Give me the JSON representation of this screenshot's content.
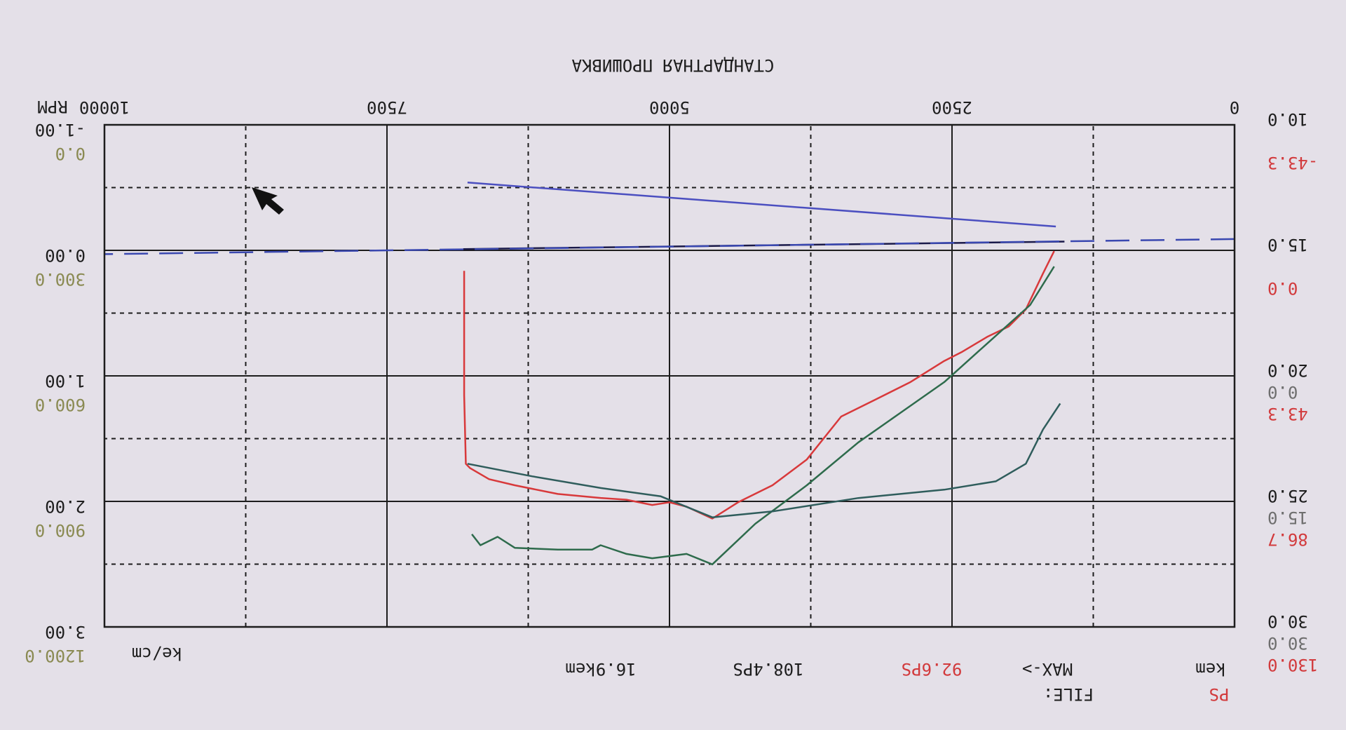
{
  "chart_data": {
    "type": "line",
    "title": "СТАНДАРТНАЯ ПРОШИВКА",
    "x_label": "RPM",
    "right_unit": "ke/cm",
    "xlim": [
      0,
      10000
    ],
    "xticks": [
      0,
      2500,
      5000,
      7500,
      10000
    ],
    "grid": true,
    "axes": [
      {
        "side": "left",
        "color": "#1d1d1d",
        "ylim": [
          10,
          30
        ],
        "yticks": [
          {
            "value": 10,
            "label": "10.0"
          },
          {
            "value": 15,
            "label": "15.0"
          },
          {
            "value": 20,
            "label": "20.0"
          },
          {
            "value": 25,
            "label": "25.0"
          },
          {
            "value": 30,
            "label": "30.0"
          }
        ]
      },
      {
        "side": "left",
        "color": "#d23a3c",
        "ylim": [
          -43.3,
          130
        ],
        "yticks": [
          -43.3,
          {
            "value": 0,
            "label": "0.0"
          },
          43.3,
          86.7,
          {
            "value": 130,
            "label": "130.0"
          }
        ]
      },
      {
        "side": "left",
        "color": "#6e6e6e",
        "ylim": [
          -30,
          30
        ],
        "yticks": [
          {
            "value": 0,
            "label": "0.0"
          },
          {
            "value": 15,
            "label": "15.0"
          },
          {
            "value": 30,
            "label": "30.0"
          }
        ]
      },
      {
        "side": "right",
        "color": "#1d1d1d",
        "ylim": [
          -1,
          3
        ],
        "yticks": [
          {
            "value": -1,
            "label": "-1.00"
          },
          {
            "value": 0,
            "label": "0.00"
          },
          {
            "value": 1,
            "label": "1.00"
          },
          {
            "value": 2,
            "label": "2.00"
          },
          {
            "value": 3,
            "label": "3.00"
          }
        ]
      },
      {
        "side": "right",
        "color": "#8a8a52",
        "ylim": [
          0,
          1200
        ],
        "yticks": [
          {
            "value": 0,
            "label": "0.0"
          },
          {
            "value": 300,
            "label": "300.0"
          },
          {
            "value": 600,
            "label": "600.0"
          },
          {
            "value": 900,
            "label": "900.0"
          },
          {
            "value": 1200,
            "label": "1200.0"
          }
        ]
      }
    ],
    "series": [
      {
        "axis": 1,
        "color": "#d8393b",
        "dash": false,
        "x": [
          1596,
          1695,
          1847,
          1999,
          2189,
          2417,
          2569,
          2873,
          3177,
          3481,
          3785,
          4089,
          4393,
          4621,
          4849,
          5001,
          5153,
          5381,
          5609,
          5989,
          6369,
          6597,
          6764,
          6802,
          6817,
          6817
        ],
        "values": [
          0.3,
          8.0,
          20.4,
          26.3,
          29.9,
          35.2,
          38.2,
          45.6,
          51.5,
          57.4,
          72.2,
          81.1,
          87.0,
          92.6,
          88.5,
          87.0,
          87.9,
          86.1,
          85.5,
          84.1,
          81.1,
          79.0,
          75.2,
          73.7,
          50.0,
          7.1
        ]
      },
      {
        "axis": 1,
        "color": "#2e6b4c",
        "dash": false,
        "x": [
          1596,
          1809,
          2189,
          2569,
          2949,
          3329,
          3785,
          4241,
          4621,
          4849,
          5153,
          5381,
          5609,
          5685,
          5989,
          6369,
          6521,
          6673,
          6749
        ],
        "values": [
          5.6,
          18.9,
          32.2,
          45.5,
          55.9,
          66.3,
          81.1,
          94.4,
          108.4,
          104.8,
          106.3,
          104.8,
          101.8,
          103.3,
          103.3,
          102.7,
          98.9,
          101.8,
          98.0
        ]
      },
      {
        "axis": 2,
        "color": "#2f5d5c",
        "dash": false,
        "x": [
          1543,
          1695,
          1847,
          2113,
          2569,
          3329,
          4089,
          4621,
          5077,
          5609,
          6217,
          6787
        ],
        "values": [
          3.3,
          6.4,
          10.5,
          12.6,
          13.6,
          14.6,
          16.2,
          16.9,
          14.4,
          13.4,
          12.0,
          10.5
        ]
      },
      {
        "axis": 3,
        "color": "#4b4fc0",
        "dash": false,
        "x": [
          1581,
          6787
        ],
        "values": [
          -0.19,
          -0.54
        ]
      },
      {
        "axis": 3,
        "color": "#1a1a4a",
        "dash": false,
        "x": [
          1505,
          6825
        ],
        "values": [
          -0.07,
          -0.01
        ]
      },
      {
        "axis": 3,
        "color": "#3a48b0",
        "dash": true,
        "x": [
          0,
          10000
        ],
        "values": [
          -0.09,
          0.03
        ]
      }
    ]
  },
  "header": {
    "ps": "PS",
    "ps_unit": "kem",
    "file": "FILE:",
    "max": "MAX->",
    "max_ps_1": "92.6PS",
    "max_ps_2": "108.4PS",
    "max_torque": "16.9kem"
  }
}
